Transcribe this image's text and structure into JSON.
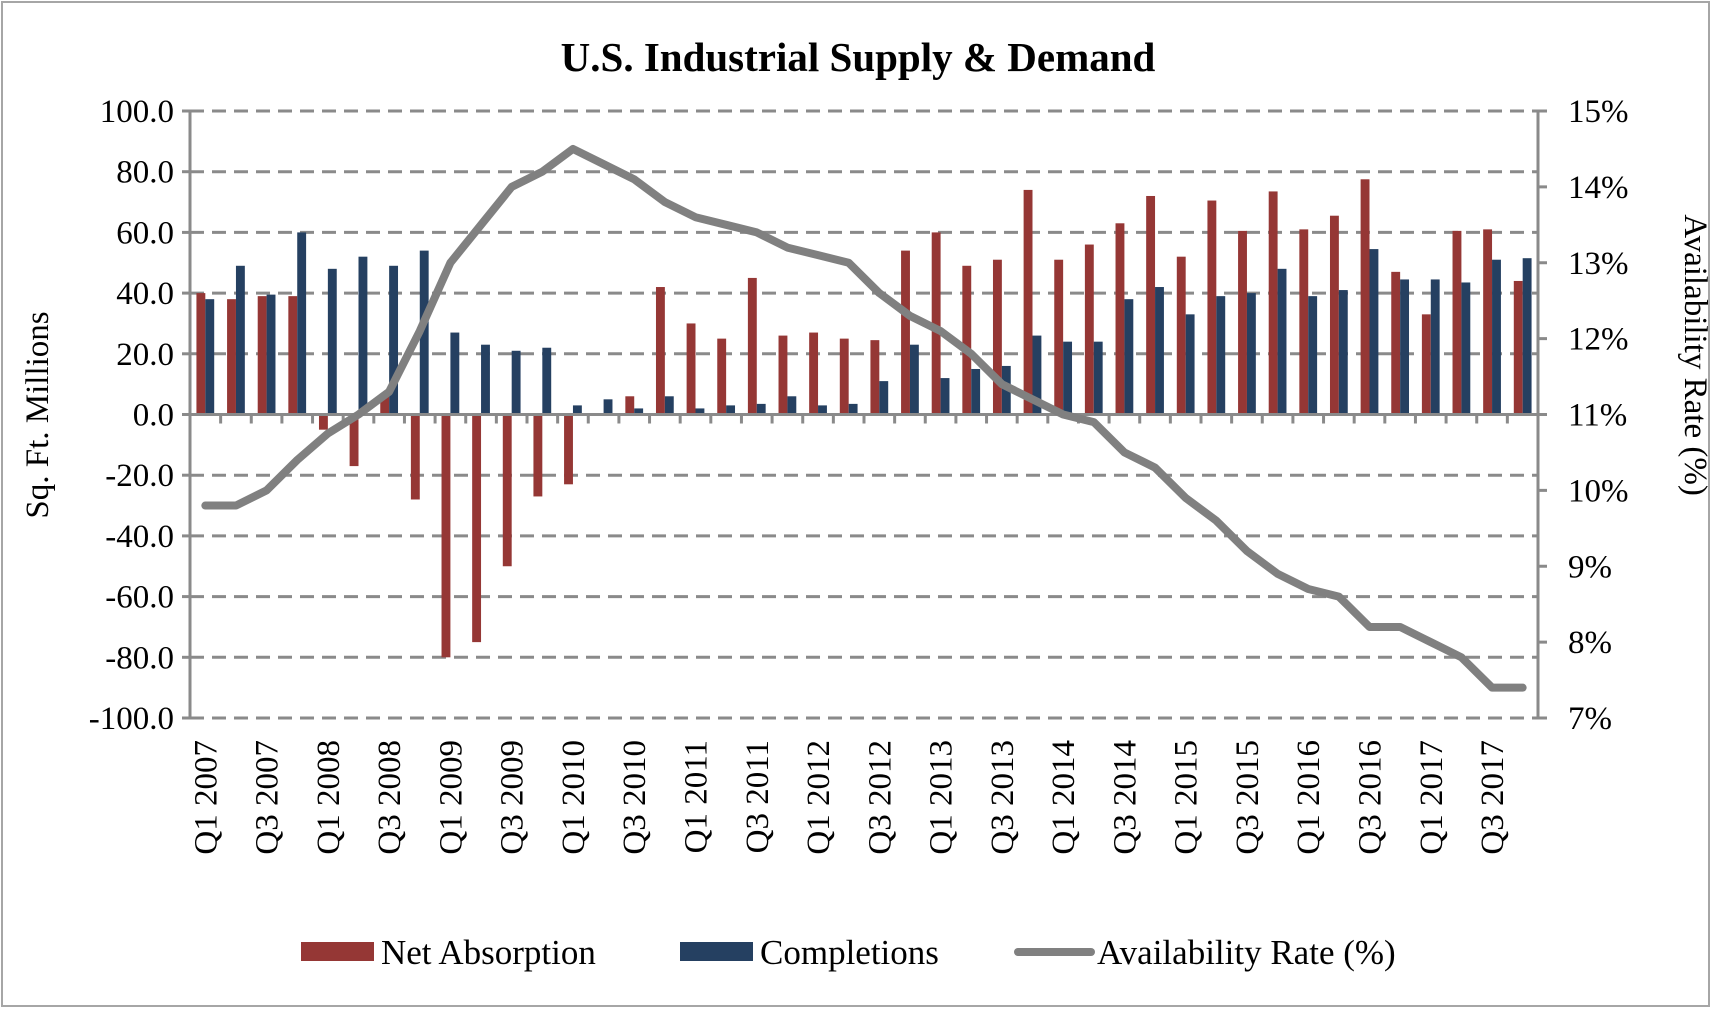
{
  "chart_data": {
    "type": "bar",
    "title": "U.S. Industrial Supply & Demand",
    "xlabel": "",
    "ylabel": "Sq. Ft. Millions",
    "y2label": "Availability Rate (%)",
    "ylim": [
      -100,
      100
    ],
    "y2lim": [
      7,
      15
    ],
    "yticks": [
      "100.0",
      "80.0",
      "60.0",
      "40.0",
      "20.0",
      "0.0",
      "-20.0",
      "-40.0",
      "-60.0",
      "-80.0",
      "-100.0"
    ],
    "y2ticks": [
      "15%",
      "14%",
      "13%",
      "12%",
      "11%",
      "10%",
      "9%",
      "8%",
      "7%"
    ],
    "grid": true,
    "legend_position": "bottom",
    "categories": [
      "Q1 2007",
      "Q2 2007",
      "Q3 2007",
      "Q4 2007",
      "Q1 2008",
      "Q2 2008",
      "Q3 2008",
      "Q4 2008",
      "Q1 2009",
      "Q2 2009",
      "Q3 2009",
      "Q4 2009",
      "Q1 2010",
      "Q2 2010",
      "Q3 2010",
      "Q4 2010",
      "Q1 2011",
      "Q2 2011",
      "Q3 2011",
      "Q4 2011",
      "Q1 2012",
      "Q2 2012",
      "Q3 2012",
      "Q4 2012",
      "Q1 2013",
      "Q2 2013",
      "Q3 2013",
      "Q4 2013",
      "Q1 2014",
      "Q2 2014",
      "Q3 2014",
      "Q4 2014",
      "Q1 2015",
      "Q2 2015",
      "Q3 2015",
      "Q4 2015",
      "Q1 2016",
      "Q2 2016",
      "Q3 2016",
      "Q4 2016",
      "Q1 2017",
      "Q2 2017",
      "Q3 2017",
      "Q4 2017"
    ],
    "tick_labels_shown": [
      "Q1 2007",
      "Q3 2007",
      "Q1 2008",
      "Q3 2008",
      "Q1 2009",
      "Q3 2009",
      "Q1 2010",
      "Q3 2010",
      "Q1 2011",
      "Q3 2011",
      "Q1 2012",
      "Q3 2012",
      "Q1 2013",
      "Q3 2013",
      "Q1 2014",
      "Q3 2014",
      "Q1 2015",
      "Q3 2015",
      "Q1 2016",
      "Q3 2016",
      "Q1 2017",
      "Q3 2017"
    ],
    "series": [
      {
        "name": "Net Absorption",
        "type": "bar",
        "axis": "left",
        "color": "#953735",
        "values": [
          40,
          38,
          39,
          39,
          -5,
          -17,
          6,
          -28,
          -80,
          -75,
          -50,
          -27,
          -23,
          0,
          6,
          42,
          30,
          25,
          45,
          26,
          27,
          25,
          24.5,
          54,
          60,
          49,
          51,
          74,
          51,
          56,
          63,
          72,
          52,
          70.5,
          60.5,
          73.5,
          61,
          65.5,
          77.5,
          47,
          33,
          60.5,
          61,
          44
        ]
      },
      {
        "name": "Completions",
        "type": "bar",
        "axis": "left",
        "color": "#254061",
        "values": [
          38,
          49,
          39.5,
          60,
          48,
          52,
          49,
          54,
          27,
          23,
          21,
          22,
          3,
          5,
          2,
          6,
          2,
          3,
          3.5,
          6,
          3,
          3.5,
          11,
          23,
          12,
          15,
          16,
          26,
          24,
          24,
          38,
          42,
          33,
          39,
          40,
          48,
          39,
          41,
          54.5,
          44.5,
          44.5,
          43.5,
          51,
          51.5
        ]
      },
      {
        "name": "Availability Rate (%)",
        "type": "line",
        "axis": "right",
        "color": "#808080",
        "values": [
          9.8,
          9.8,
          10.0,
          10.4,
          10.75,
          11.0,
          11.3,
          12.1,
          13.0,
          13.5,
          14.0,
          14.2,
          14.5,
          14.3,
          14.1,
          13.8,
          13.6,
          13.5,
          13.4,
          13.2,
          13.1,
          13.0,
          12.6,
          12.3,
          12.1,
          11.8,
          11.4,
          11.2,
          11.0,
          10.9,
          10.5,
          10.3,
          9.9,
          9.6,
          9.2,
          8.9,
          8.7,
          8.6,
          8.2,
          8.2,
          8.0,
          7.8,
          7.4,
          7.4
        ]
      }
    ]
  }
}
